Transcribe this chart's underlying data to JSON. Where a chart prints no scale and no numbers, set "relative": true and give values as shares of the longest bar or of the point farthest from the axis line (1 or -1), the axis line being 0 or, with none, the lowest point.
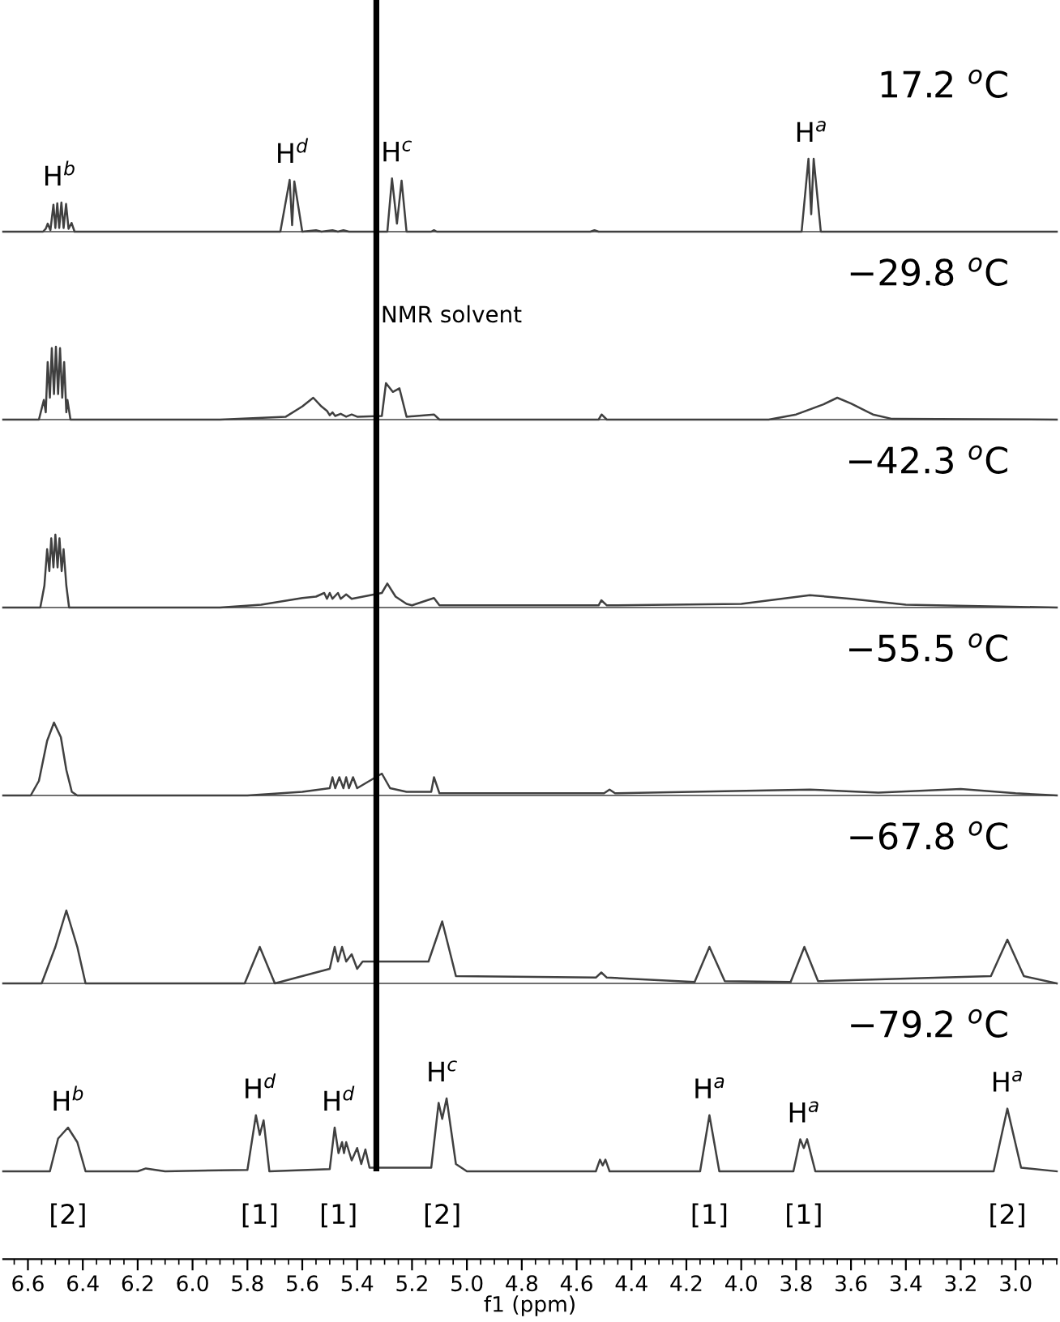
{
  "chart_data": [
    {
      "type": "line",
      "relative": true,
      "color": "#404040",
      "xlim": [
        6.69,
        2.85
      ],
      "tick_labels": false,
      "x": [
        6.69,
        6.545,
        6.535,
        6.528,
        6.518,
        6.507,
        6.5,
        6.493,
        6.486,
        6.478,
        6.47,
        6.461,
        6.452,
        6.441,
        6.43,
        5.68,
        5.646,
        5.637,
        5.629,
        5.6,
        5.55,
        5.53,
        5.49,
        5.47,
        5.45,
        5.43,
        5.29,
        5.273,
        5.255,
        5.238,
        5.22,
        5.13,
        5.12,
        5.11,
        4.55,
        4.535,
        4.52,
        3.78,
        3.755,
        3.745,
        3.736,
        3.71,
        2.85
      ],
      "values": [
        0,
        0,
        0.04,
        0.11,
        0.02,
        0.37,
        0.05,
        0.39,
        0.05,
        0.4,
        0.05,
        0.38,
        0.04,
        0.12,
        0,
        0,
        0.71,
        0.09,
        0.69,
        0,
        0.02,
        0,
        0.02,
        0,
        0.02,
        0,
        0,
        0.73,
        0.11,
        0.7,
        0,
        0,
        0.02,
        0,
        0,
        0.02,
        0,
        0,
        1,
        0.24,
        1,
        0,
        0
      ],
      "ref_lines": [
        {
          "axis": "x",
          "value": 5.33,
          "color": "#000000"
        }
      ],
      "annotations": [
        {
          "text": "H$^{b}$",
          "x": 6.485,
          "y": 0.4
        },
        {
          "text": "H$^{d}$",
          "x": 5.637,
          "y": 0.71
        },
        {
          "text": "H$^{c}$",
          "x": 5.255,
          "y": 0.73
        },
        {
          "text": "H$^{a}$",
          "x": 3.745,
          "y": 1
        }
      ],
      "title": "17.2 $^{o}$C"
    },
    {
      "type": "line",
      "relative": true,
      "color": "#404040",
      "xlim": [
        6.69,
        2.85
      ],
      "tick_labels": false,
      "x": [
        6.69,
        6.56,
        6.542,
        6.535,
        6.528,
        6.52,
        6.513,
        6.505,
        6.498,
        6.49,
        6.483,
        6.475,
        6.468,
        6.46,
        6.456,
        6.445,
        5.9,
        5.66,
        5.6,
        5.56,
        5.53,
        5.51,
        5.5,
        5.49,
        5.48,
        5.46,
        5.44,
        5.42,
        5.4,
        5.31,
        5.295,
        5.27,
        5.246,
        5.22,
        5.12,
        5.1,
        4.52,
        4.509,
        4.49,
        3.9,
        3.8,
        3.7,
        3.65,
        3.6,
        3.52,
        3.45,
        2.85
      ],
      "values": [
        0,
        0,
        0.27,
        0.1,
        0.79,
        0.3,
        0.98,
        0.35,
        1,
        0.35,
        0.98,
        0.3,
        0.79,
        0.1,
        0.27,
        0,
        0,
        0.04,
        0.18,
        0.3,
        0.18,
        0.12,
        0.06,
        0.1,
        0.05,
        0.08,
        0.04,
        0.07,
        0.04,
        0.05,
        0.5,
        0.38,
        0.43,
        0.04,
        0.07,
        0,
        0,
        0.07,
        0,
        0,
        0.07,
        0.21,
        0.3,
        0.22,
        0.07,
        0.01,
        0
      ],
      "ref_lines": [
        {
          "axis": "x",
          "value": 5.33,
          "color": "#000000",
          "label": "NMR solvent"
        }
      ],
      "title": "−29.8 $^{o}$C"
    },
    {
      "type": "line",
      "relative": true,
      "color": "#404040",
      "xlim": [
        6.69,
        2.85
      ],
      "tick_labels": false,
      "x": [
        6.69,
        6.555,
        6.54,
        6.53,
        6.522,
        6.515,
        6.507,
        6.5,
        6.492,
        6.485,
        6.477,
        6.47,
        6.46,
        6.45,
        5.9,
        5.75,
        5.6,
        5.55,
        5.52,
        5.51,
        5.5,
        5.49,
        5.47,
        5.46,
        5.44,
        5.42,
        5.31,
        5.29,
        5.26,
        5.22,
        5.2,
        5.12,
        5.1,
        4.52,
        4.51,
        4.49,
        4.0,
        3.75,
        3.6,
        3.4,
        2.85
      ],
      "values": [
        0,
        0,
        0.3,
        0.8,
        0.5,
        0.95,
        0.55,
        1,
        0.55,
        0.95,
        0.5,
        0.8,
        0.3,
        0,
        0,
        0.04,
        0.13,
        0.15,
        0.2,
        0.12,
        0.2,
        0.12,
        0.2,
        0.12,
        0.18,
        0.12,
        0.2,
        0.33,
        0.15,
        0.05,
        0.03,
        0.13,
        0.03,
        0.03,
        0.1,
        0.03,
        0.05,
        0.17,
        0.12,
        0.04,
        0
      ],
      "ref_lines": [
        {
          "axis": "x",
          "value": 5.33,
          "color": "#000000"
        }
      ],
      "title": "−42.3 $^{o}$C"
    },
    {
      "type": "line",
      "relative": true,
      "color": "#404040",
      "xlim": [
        6.69,
        2.85
      ],
      "tick_labels": false,
      "x": [
        6.69,
        6.59,
        6.56,
        6.53,
        6.505,
        6.48,
        6.46,
        6.44,
        6.42,
        5.8,
        5.6,
        5.5,
        5.49,
        5.48,
        5.465,
        5.45,
        5.44,
        5.43,
        5.415,
        5.4,
        5.31,
        5.28,
        5.22,
        5.13,
        5.12,
        5.1,
        4.5,
        4.48,
        4.46,
        3.75,
        3.5,
        3.2,
        3.0,
        2.85
      ],
      "values": [
        0,
        0,
        0.2,
        0.75,
        1,
        0.8,
        0.35,
        0.05,
        0,
        0,
        0.05,
        0.1,
        0.25,
        0.1,
        0.25,
        0.1,
        0.25,
        0.1,
        0.25,
        0.1,
        0.3,
        0.1,
        0.05,
        0.05,
        0.25,
        0.03,
        0.03,
        0.08,
        0.03,
        0.08,
        0.04,
        0.09,
        0.03,
        0
      ],
      "ref_lines": [
        {
          "axis": "x",
          "value": 5.33,
          "color": "#000000"
        }
      ],
      "title": "−55.5 $^{o}$C"
    },
    {
      "type": "line",
      "relative": true,
      "color": "#404040",
      "xlim": [
        6.69,
        2.85
      ],
      "tick_labels": false,
      "x": [
        6.69,
        6.55,
        6.5,
        6.46,
        6.42,
        6.39,
        5.81,
        5.755,
        5.7,
        5.5,
        5.482,
        5.47,
        5.455,
        5.44,
        5.42,
        5.4,
        5.38,
        5.14,
        5.09,
        5.04,
        4.53,
        4.51,
        4.49,
        4.17,
        4.116,
        4.06,
        3.82,
        3.77,
        3.72,
        3.09,
        3.03,
        2.97,
        2.85
      ],
      "values": [
        0,
        0,
        0.5,
        1,
        0.5,
        0,
        0,
        0.5,
        0,
        0.2,
        0.5,
        0.3,
        0.5,
        0.3,
        0.4,
        0.2,
        0.3,
        0.3,
        0.85,
        0.1,
        0.08,
        0.15,
        0.08,
        0.02,
        0.5,
        0.03,
        0.02,
        0.5,
        0.03,
        0.1,
        0.6,
        0.1,
        0
      ],
      "ref_lines": [
        {
          "axis": "x",
          "value": 5.33,
          "color": "#000000"
        }
      ],
      "title": "−67.8 $^{o}$C"
    },
    {
      "type": "line",
      "relative": true,
      "color": "#404040",
      "xlim": [
        6.69,
        2.85
      ],
      "xlabel": "f1 (ppm)",
      "xticks": [
        6.6,
        6.4,
        6.2,
        {
          "value": 6,
          "label": "6.0"
        },
        5.8,
        5.6,
        5.4,
        5.2,
        {
          "value": 5,
          "label": "5.0"
        },
        4.8,
        4.6,
        4.4,
        4.2,
        {
          "value": 4,
          "label": "4.0"
        },
        3.8,
        3.6,
        3.4,
        3.2,
        {
          "value": 3,
          "label": "3.0"
        }
      ],
      "x": [
        6.69,
        6.52,
        6.49,
        6.454,
        6.42,
        6.39,
        6.2,
        6.17,
        6.1,
        5.8,
        5.769,
        5.755,
        5.741,
        5.72,
        5.5,
        5.482,
        5.468,
        5.455,
        5.448,
        5.44,
        5.42,
        5.4,
        5.385,
        5.37,
        5.355,
        5.13,
        5.103,
        5.09,
        5.074,
        5.04,
        5.0,
        4.53,
        4.515,
        4.505,
        4.495,
        4.48,
        4.15,
        4.116,
        4.08,
        3.81,
        3.785,
        3.772,
        3.76,
        3.73,
        3.08,
        3.03,
        2.98,
        2.85
      ],
      "values": [
        0,
        0,
        0.45,
        0.6,
        0.4,
        0,
        0,
        0.04,
        0,
        0.02,
        0.77,
        0.5,
        0.7,
        0,
        0.03,
        0.6,
        0.25,
        0.4,
        0.25,
        0.4,
        0.15,
        0.32,
        0.1,
        0.3,
        0.05,
        0.05,
        0.94,
        0.72,
        1,
        0.1,
        0,
        0,
        0.16,
        0.08,
        0.16,
        0,
        0,
        0.77,
        0,
        0,
        0.44,
        0.32,
        0.44,
        0,
        0,
        0.86,
        0.05,
        0
      ],
      "ref_lines": [
        {
          "axis": "x",
          "value": 5.33,
          "color": "#000000"
        }
      ],
      "annotations": [
        {
          "text": "H$^{b}$",
          "x": 6.454,
          "y": 0.6
        },
        {
          "text": "H$^{d}$",
          "x": 5.755,
          "y": 0.77
        },
        {
          "text": "H$^{d}$",
          "x": 5.468,
          "y": 0.6
        },
        {
          "text": "H$^{c}$",
          "x": 5.09,
          "y": 1
        },
        {
          "text": "H$^{a}$",
          "x": 4.116,
          "y": 0.77
        },
        {
          "text": "H$^{a}$",
          "x": 3.772,
          "y": 0.44
        },
        {
          "text": "H$^{a}$",
          "x": 3.03,
          "y": 0.86
        },
        "[2]",
        "[1]",
        "[1]",
        "[2]",
        "[1]",
        "[1]",
        "[2]"
      ],
      "title": "−79.2 $^{o}$C"
    }
  ]
}
